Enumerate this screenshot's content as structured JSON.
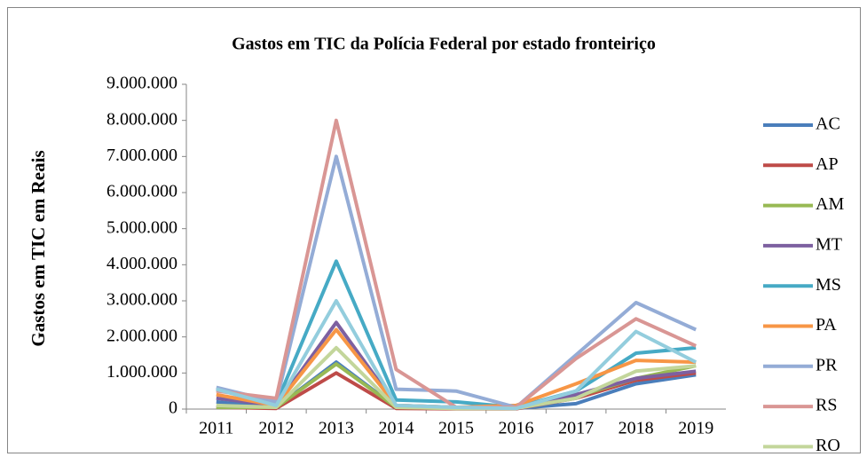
{
  "chart_data": {
    "type": "line",
    "title": "Gastos em TIC da Polícia Federal por estado fronteiriço",
    "y_label": "Gastos em TIC em Reais",
    "categories": [
      "2011",
      "2012",
      "2013",
      "2014",
      "2015",
      "2016",
      "2017",
      "2018",
      "2019"
    ],
    "ylim": [
      0,
      9000000
    ],
    "yticks": [
      0,
      {
        "value": 1000000,
        "label": "1.000.000"
      },
      {
        "value": 2000000,
        "label": "2.000.000"
      },
      {
        "value": 3000000,
        "label": "3.000.000"
      },
      {
        "value": 4000000,
        "label": "4.000.000"
      },
      {
        "value": 5000000,
        "label": "5.000.000"
      },
      {
        "value": 6000000,
        "label": "6.000.000"
      },
      {
        "value": 7000000,
        "label": "7.000.000"
      },
      {
        "value": 8000000,
        "label": "8.000.000"
      },
      {
        "value": 9000000,
        "label": "9.000.000"
      }
    ],
    "grid": false,
    "legend": "right",
    "series": [
      {
        "name": "AC",
        "color": "#4a7ebb",
        "values": [
          200000,
          50000,
          1300000,
          50000,
          20000,
          20000,
          150000,
          700000,
          950000
        ]
      },
      {
        "name": "AP",
        "color": "#be4b48",
        "values": [
          50000,
          20000,
          1000000,
          20000,
          10000,
          10000,
          300000,
          800000,
          1000000
        ]
      },
      {
        "name": "AM",
        "color": "#98b954",
        "values": [
          50000,
          50000,
          1250000,
          50000,
          20000,
          20000,
          350000,
          850000,
          1200000
        ]
      },
      {
        "name": "MT",
        "color": "#7d60a0",
        "values": [
          300000,
          100000,
          2400000,
          100000,
          50000,
          50000,
          400000,
          850000,
          1050000
        ]
      },
      {
        "name": "MS",
        "color": "#46aac5",
        "values": [
          550000,
          150000,
          4100000,
          250000,
          200000,
          50000,
          500000,
          1550000,
          1700000
        ]
      },
      {
        "name": "PA",
        "color": "#f79646",
        "values": [
          400000,
          100000,
          2200000,
          100000,
          50000,
          100000,
          700000,
          1350000,
          1300000
        ]
      },
      {
        "name": "PR",
        "color": "#94acd6",
        "values": [
          600000,
          200000,
          7000000,
          550000,
          500000,
          50000,
          1500000,
          2950000,
          2200000
        ]
      },
      {
        "name": "RS",
        "color": "#d99694",
        "values": [
          500000,
          300000,
          8000000,
          1100000,
          50000,
          50000,
          1400000,
          2500000,
          1750000
        ]
      },
      {
        "name": "RO",
        "color": "#c3d69b",
        "values": [
          100000,
          50000,
          1700000,
          50000,
          20000,
          20000,
          300000,
          1050000,
          1200000
        ]
      },
      {
        "color": "#93cddd",
        "values": [
          550000,
          100000,
          3000000,
          100000,
          50000,
          20000,
          500000,
          2150000,
          1300000
        ]
      }
    ]
  }
}
